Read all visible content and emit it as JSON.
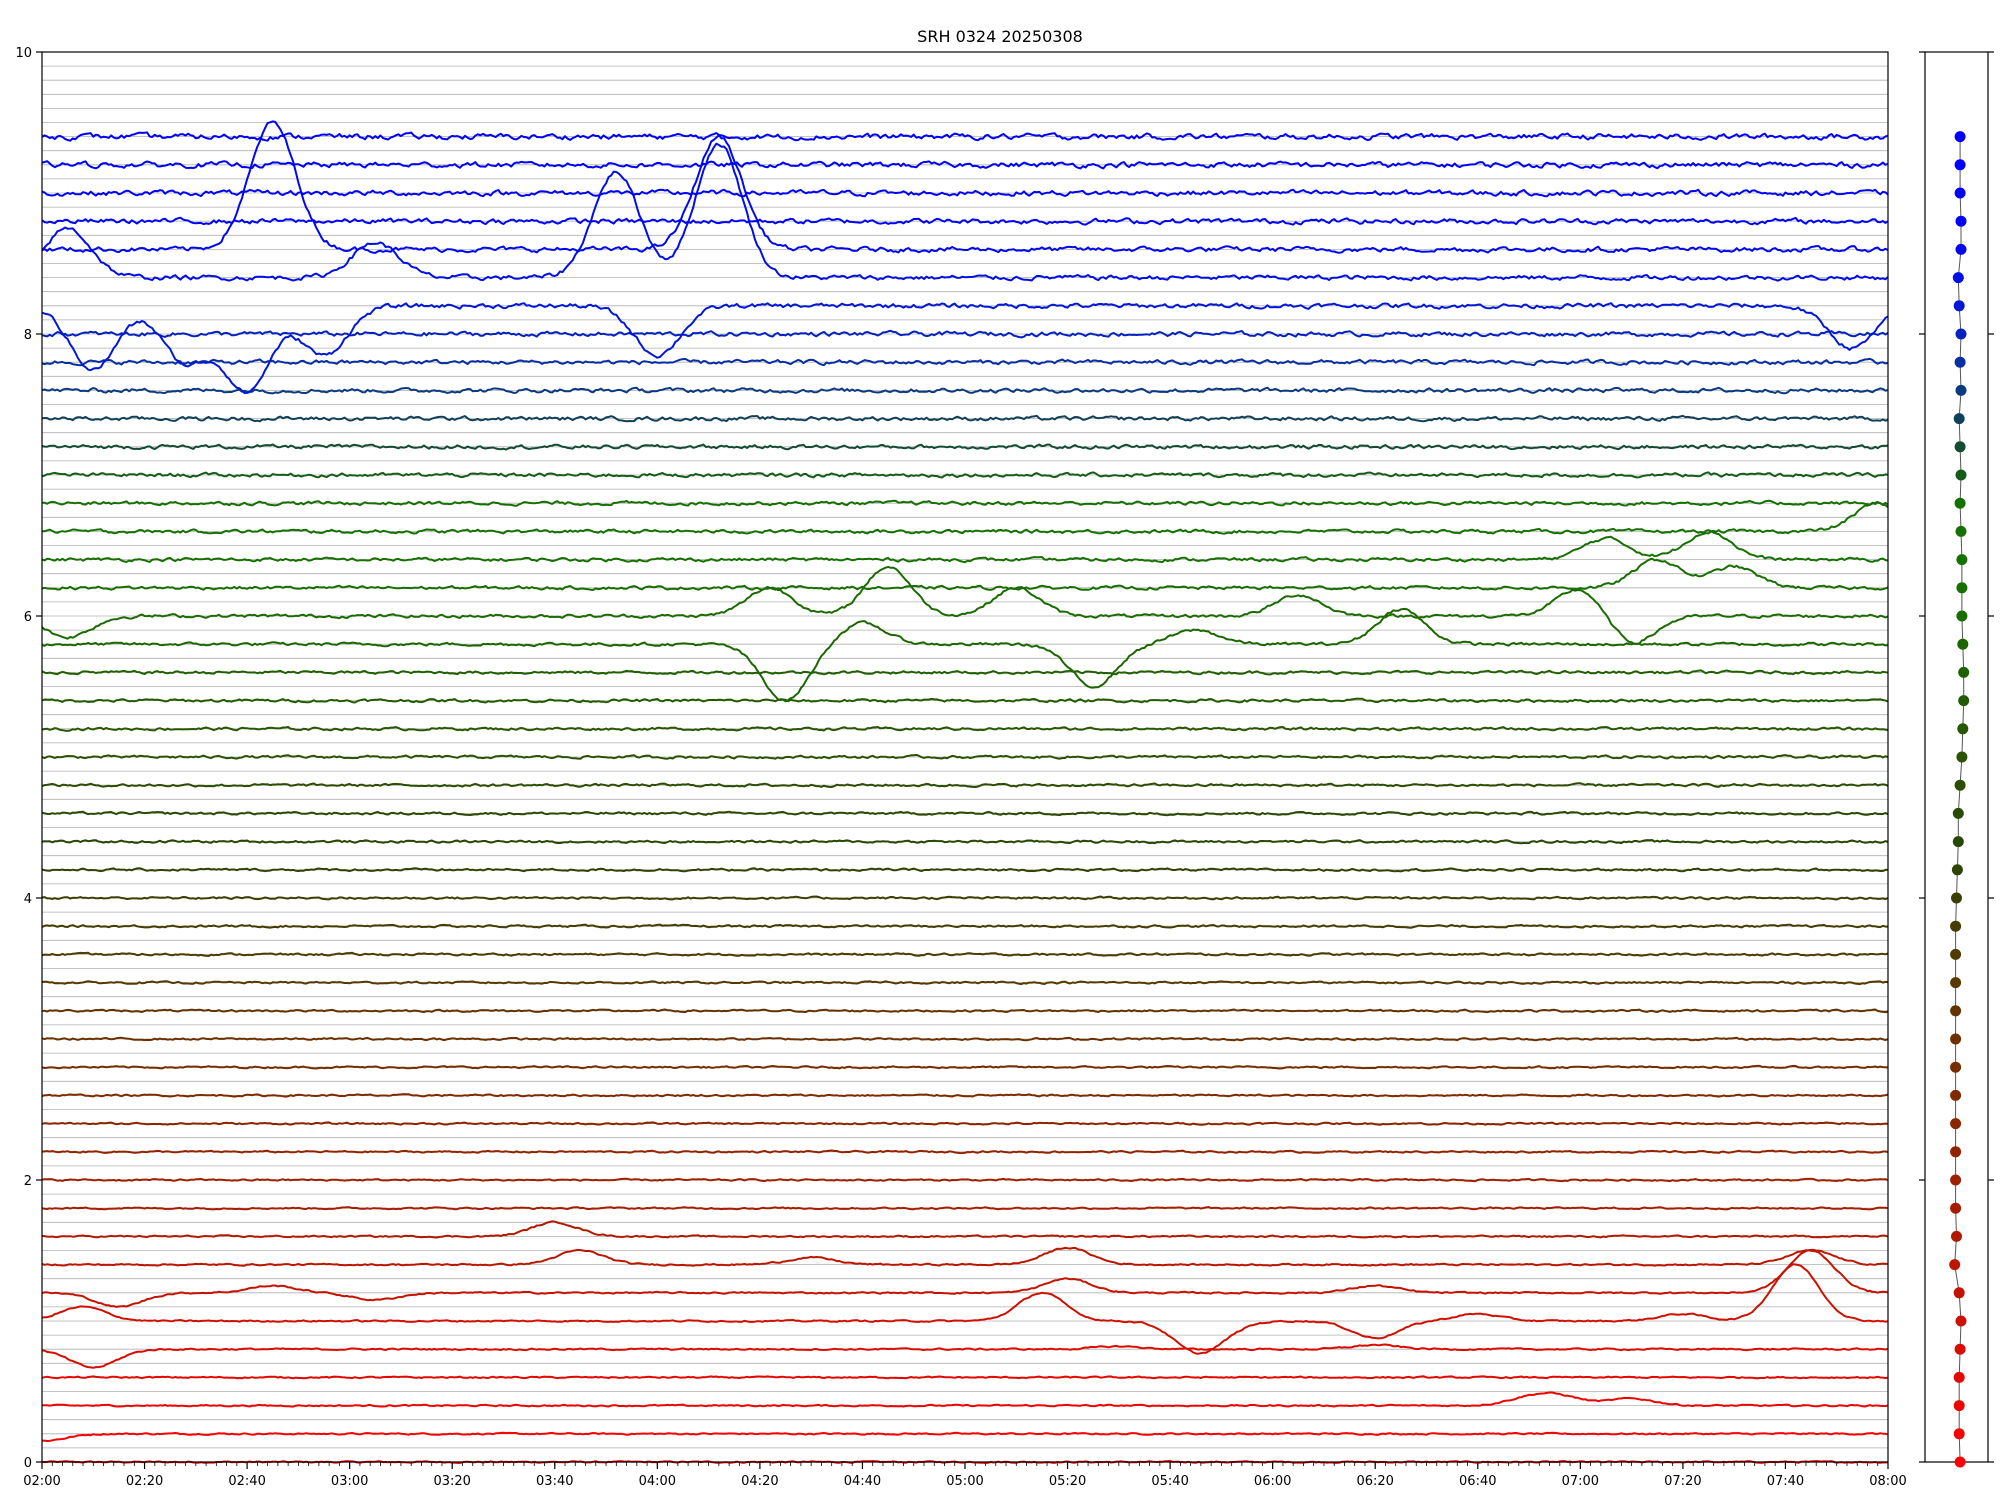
{
  "chart_data": {
    "type": "line",
    "title": "SRH 0324 20250308",
    "xlabel": "",
    "ylabel": "",
    "xlim": [
      "02:00",
      "08:00"
    ],
    "ylim": [
      0,
      10
    ],
    "x_ticks": [
      "02:00",
      "02:20",
      "02:40",
      "03:00",
      "03:20",
      "03:40",
      "04:00",
      "04:20",
      "04:40",
      "05:00",
      "05:20",
      "05:40",
      "06:00",
      "06:20",
      "06:40",
      "07:00",
      "07:20",
      "07:40",
      "08:00"
    ],
    "y_ticks": [
      "0",
      "2",
      "4",
      "6",
      "8",
      "10"
    ],
    "grid": "horizontal",
    "channel_spacing": 0.2,
    "n_channels": 48,
    "color_gradient": [
      "#ff0000",
      "#1a6e00",
      "#0000ff"
    ],
    "series": [
      {
        "channel": 0,
        "baseline": 0.0,
        "color": "#ff0000",
        "events": []
      },
      {
        "channel": 1,
        "baseline": 0.2,
        "color": "#f50300",
        "events": [
          {
            "t": "02:00",
            "v": -0.05
          }
        ]
      },
      {
        "channel": 2,
        "baseline": 0.4,
        "color": "#eb0600",
        "events": [
          {
            "t": "06:50",
            "v": 0.05
          },
          {
            "t": "06:56",
            "v": 0.06
          },
          {
            "t": "07:10",
            "v": 0.05
          }
        ]
      },
      {
        "channel": 3,
        "baseline": 0.6,
        "color": "#e20a00",
        "events": []
      },
      {
        "channel": 4,
        "baseline": 0.8,
        "color": "#d80d00",
        "events": [
          {
            "t": "02:10",
            "v": -0.13
          },
          {
            "t": "05:30",
            "v": 0.02
          },
          {
            "t": "06:20",
            "v": 0.03
          }
        ]
      },
      {
        "channel": 5,
        "baseline": 1.0,
        "color": "#ce1000",
        "events": [
          {
            "t": "02:08",
            "v": 0.1
          },
          {
            "t": "05:15",
            "v": 0.2
          },
          {
            "t": "05:45",
            "v": -0.2
          },
          {
            "t": "05:50",
            "v": -0.05
          },
          {
            "t": "06:20",
            "v": -0.12
          },
          {
            "t": "06:40",
            "v": 0.05
          },
          {
            "t": "07:20",
            "v": 0.05
          },
          {
            "t": "07:42",
            "v": 0.4
          }
        ]
      },
      {
        "channel": 6,
        "baseline": 1.2,
        "color": "#c41300",
        "events": [
          {
            "t": "02:15",
            "v": -0.1
          },
          {
            "t": "02:45",
            "v": 0.05
          },
          {
            "t": "03:05",
            "v": -0.05
          },
          {
            "t": "05:20",
            "v": 0.1
          },
          {
            "t": "06:20",
            "v": 0.05
          },
          {
            "t": "07:45",
            "v": 0.3
          }
        ]
      },
      {
        "channel": 7,
        "baseline": 1.4,
        "color": "#ba1600",
        "events": [
          {
            "t": "03:45",
            "v": 0.1
          },
          {
            "t": "04:30",
            "v": 0.05
          },
          {
            "t": "05:20",
            "v": 0.12
          },
          {
            "t": "07:45",
            "v": 0.1
          }
        ]
      },
      {
        "channel": 8,
        "baseline": 1.6,
        "color": "#b01a00",
        "events": [
          {
            "t": "03:40",
            "v": 0.1
          }
        ]
      },
      {
        "channel": 9,
        "baseline": 1.8,
        "color": "#a71d00",
        "events": []
      },
      {
        "channel": 10,
        "baseline": 2.0,
        "color": "#9d2000",
        "events": []
      },
      {
        "channel": 11,
        "baseline": 2.2,
        "color": "#932300",
        "events": []
      },
      {
        "channel": 12,
        "baseline": 2.4,
        "color": "#892600",
        "events": []
      },
      {
        "channel": 13,
        "baseline": 2.6,
        "color": "#802a00",
        "events": []
      },
      {
        "channel": 14,
        "baseline": 2.8,
        "color": "#762d00",
        "events": []
      },
      {
        "channel": 15,
        "baseline": 3.0,
        "color": "#6c3000",
        "events": []
      },
      {
        "channel": 16,
        "baseline": 3.2,
        "color": "#623300",
        "events": []
      },
      {
        "channel": 17,
        "baseline": 3.4,
        "color": "#583700",
        "events": []
      },
      {
        "channel": 18,
        "baseline": 3.6,
        "color": "#4f3a00",
        "events": []
      },
      {
        "channel": 19,
        "baseline": 3.8,
        "color": "#453d00",
        "events": []
      },
      {
        "channel": 20,
        "baseline": 4.0,
        "color": "#3b4000",
        "events": []
      },
      {
        "channel": 21,
        "baseline": 4.2,
        "color": "#314300",
        "events": []
      },
      {
        "channel": 22,
        "baseline": 4.4,
        "color": "#284700",
        "events": []
      },
      {
        "channel": 23,
        "baseline": 4.6,
        "color": "#2a4a00",
        "events": []
      },
      {
        "channel": 24,
        "baseline": 4.8,
        "color": "#2c4d00",
        "events": []
      },
      {
        "channel": 25,
        "baseline": 5.0,
        "color": "#2a5200",
        "events": []
      },
      {
        "channel": 26,
        "baseline": 5.2,
        "color": "#275700",
        "events": []
      },
      {
        "channel": 27,
        "baseline": 5.4,
        "color": "#225c00",
        "events": []
      },
      {
        "channel": 28,
        "baseline": 5.6,
        "color": "#1f6100",
        "events": []
      },
      {
        "channel": 29,
        "baseline": 5.8,
        "color": "#1c6600",
        "events": [
          {
            "t": "04:25",
            "v": -0.4
          },
          {
            "t": "04:40",
            "v": 0.15
          },
          {
            "t": "05:25",
            "v": -0.3
          },
          {
            "t": "05:45",
            "v": 0.1
          },
          {
            "t": "06:25",
            "v": 0.25
          }
        ]
      },
      {
        "channel": 30,
        "baseline": 6.0,
        "color": "#1a6b00",
        "events": [
          {
            "t": "02:05",
            "v": -0.15
          },
          {
            "t": "04:22",
            "v": 0.2
          },
          {
            "t": "04:45",
            "v": 0.35
          },
          {
            "t": "05:10",
            "v": 0.2
          },
          {
            "t": "06:05",
            "v": 0.15
          },
          {
            "t": "07:00",
            "v": 0.2
          },
          {
            "t": "07:10",
            "v": -0.2
          }
        ]
      },
      {
        "channel": 31,
        "baseline": 6.2,
        "color": "#186e00",
        "events": [
          {
            "t": "07:15",
            "v": 0.2
          },
          {
            "t": "07:30",
            "v": 0.15
          }
        ]
      },
      {
        "channel": 32,
        "baseline": 6.4,
        "color": "#167000",
        "events": [
          {
            "t": "07:05",
            "v": 0.15
          },
          {
            "t": "07:25",
            "v": 0.2
          }
        ]
      },
      {
        "channel": 33,
        "baseline": 6.6,
        "color": "#157200",
        "events": [
          {
            "t": "07:58",
            "v": 0.2
          }
        ]
      },
      {
        "channel": 34,
        "baseline": 6.8,
        "color": "#157000",
        "events": []
      },
      {
        "channel": 35,
        "baseline": 7.0,
        "color": "#155d17",
        "events": []
      },
      {
        "channel": 36,
        "baseline": 7.2,
        "color": "#134b34",
        "events": []
      },
      {
        "channel": 37,
        "baseline": 7.4,
        "color": "#10405a",
        "events": []
      },
      {
        "channel": 38,
        "baseline": 7.6,
        "color": "#0b3a82",
        "events": []
      },
      {
        "channel": 39,
        "baseline": 7.8,
        "color": "#082ea3",
        "events": []
      },
      {
        "channel": 40,
        "baseline": 8.0,
        "color": "#0522c0",
        "events": []
      },
      {
        "channel": 41,
        "baseline": 8.2,
        "color": "#0318d6",
        "events": [
          {
            "t": "02:10",
            "v": -0.45
          },
          {
            "t": "02:28",
            "v": -0.4
          },
          {
            "t": "02:40",
            "v": -0.6
          },
          {
            "t": "02:55",
            "v": -0.35
          },
          {
            "t": "04:00",
            "v": -0.35
          },
          {
            "t": "07:53",
            "v": -0.3
          }
        ]
      },
      {
        "channel": 42,
        "baseline": 8.4,
        "color": "#020ee6",
        "events": [
          {
            "t": "02:05",
            "v": 0.35
          },
          {
            "t": "03:05",
            "v": 0.25
          },
          {
            "t": "03:52",
            "v": 0.75
          },
          {
            "t": "04:12",
            "v": 0.95
          }
        ]
      },
      {
        "channel": 43,
        "baseline": 8.6,
        "color": "#0108f0",
        "events": [
          {
            "t": "02:45",
            "v": 0.9
          },
          {
            "t": "04:12",
            "v": 0.8
          }
        ]
      },
      {
        "channel": 44,
        "baseline": 8.8,
        "color": "#0104f7",
        "events": []
      },
      {
        "channel": 45,
        "baseline": 9.0,
        "color": "#0002fb",
        "events": []
      },
      {
        "channel": 46,
        "baseline": 9.2,
        "color": "#0001fd",
        "events": []
      },
      {
        "channel": 47,
        "baseline": 9.4,
        "color": "#0000ff",
        "events": []
      }
    ],
    "side_panel": {
      "type": "scatter",
      "points_y": [
        0.0,
        0.2,
        0.4,
        0.6,
        0.8,
        1.0,
        1.2,
        1.4,
        1.6,
        1.8,
        2.0,
        2.2,
        2.4,
        2.6,
        2.8,
        3.0,
        3.2,
        3.4,
        3.6,
        3.8,
        4.0,
        4.2,
        4.4,
        4.6,
        4.8,
        5.0,
        5.2,
        5.4,
        5.6,
        5.8,
        6.0,
        6.2,
        6.4,
        6.6,
        6.8,
        7.0,
        7.2,
        7.4,
        7.6,
        7.8,
        8.0,
        8.2,
        8.4,
        8.6,
        8.8,
        9.0,
        9.2,
        9.4
      ],
      "points_x": [
        0.2,
        0.15,
        0.15,
        0.15,
        0.2,
        0.25,
        0.15,
        -0.1,
        0.0,
        -0.05,
        -0.05,
        -0.05,
        -0.05,
        -0.05,
        -0.05,
        -0.05,
        -0.05,
        -0.05,
        -0.05,
        -0.05,
        0.0,
        0.05,
        0.1,
        0.1,
        0.2,
        0.3,
        0.35,
        0.4,
        0.4,
        0.35,
        0.3,
        0.3,
        0.3,
        0.25,
        0.2,
        0.25,
        0.2,
        0.15,
        0.25,
        0.2,
        0.25,
        0.15,
        0.1,
        0.25,
        0.25,
        0.2,
        0.2,
        0.2
      ]
    }
  }
}
